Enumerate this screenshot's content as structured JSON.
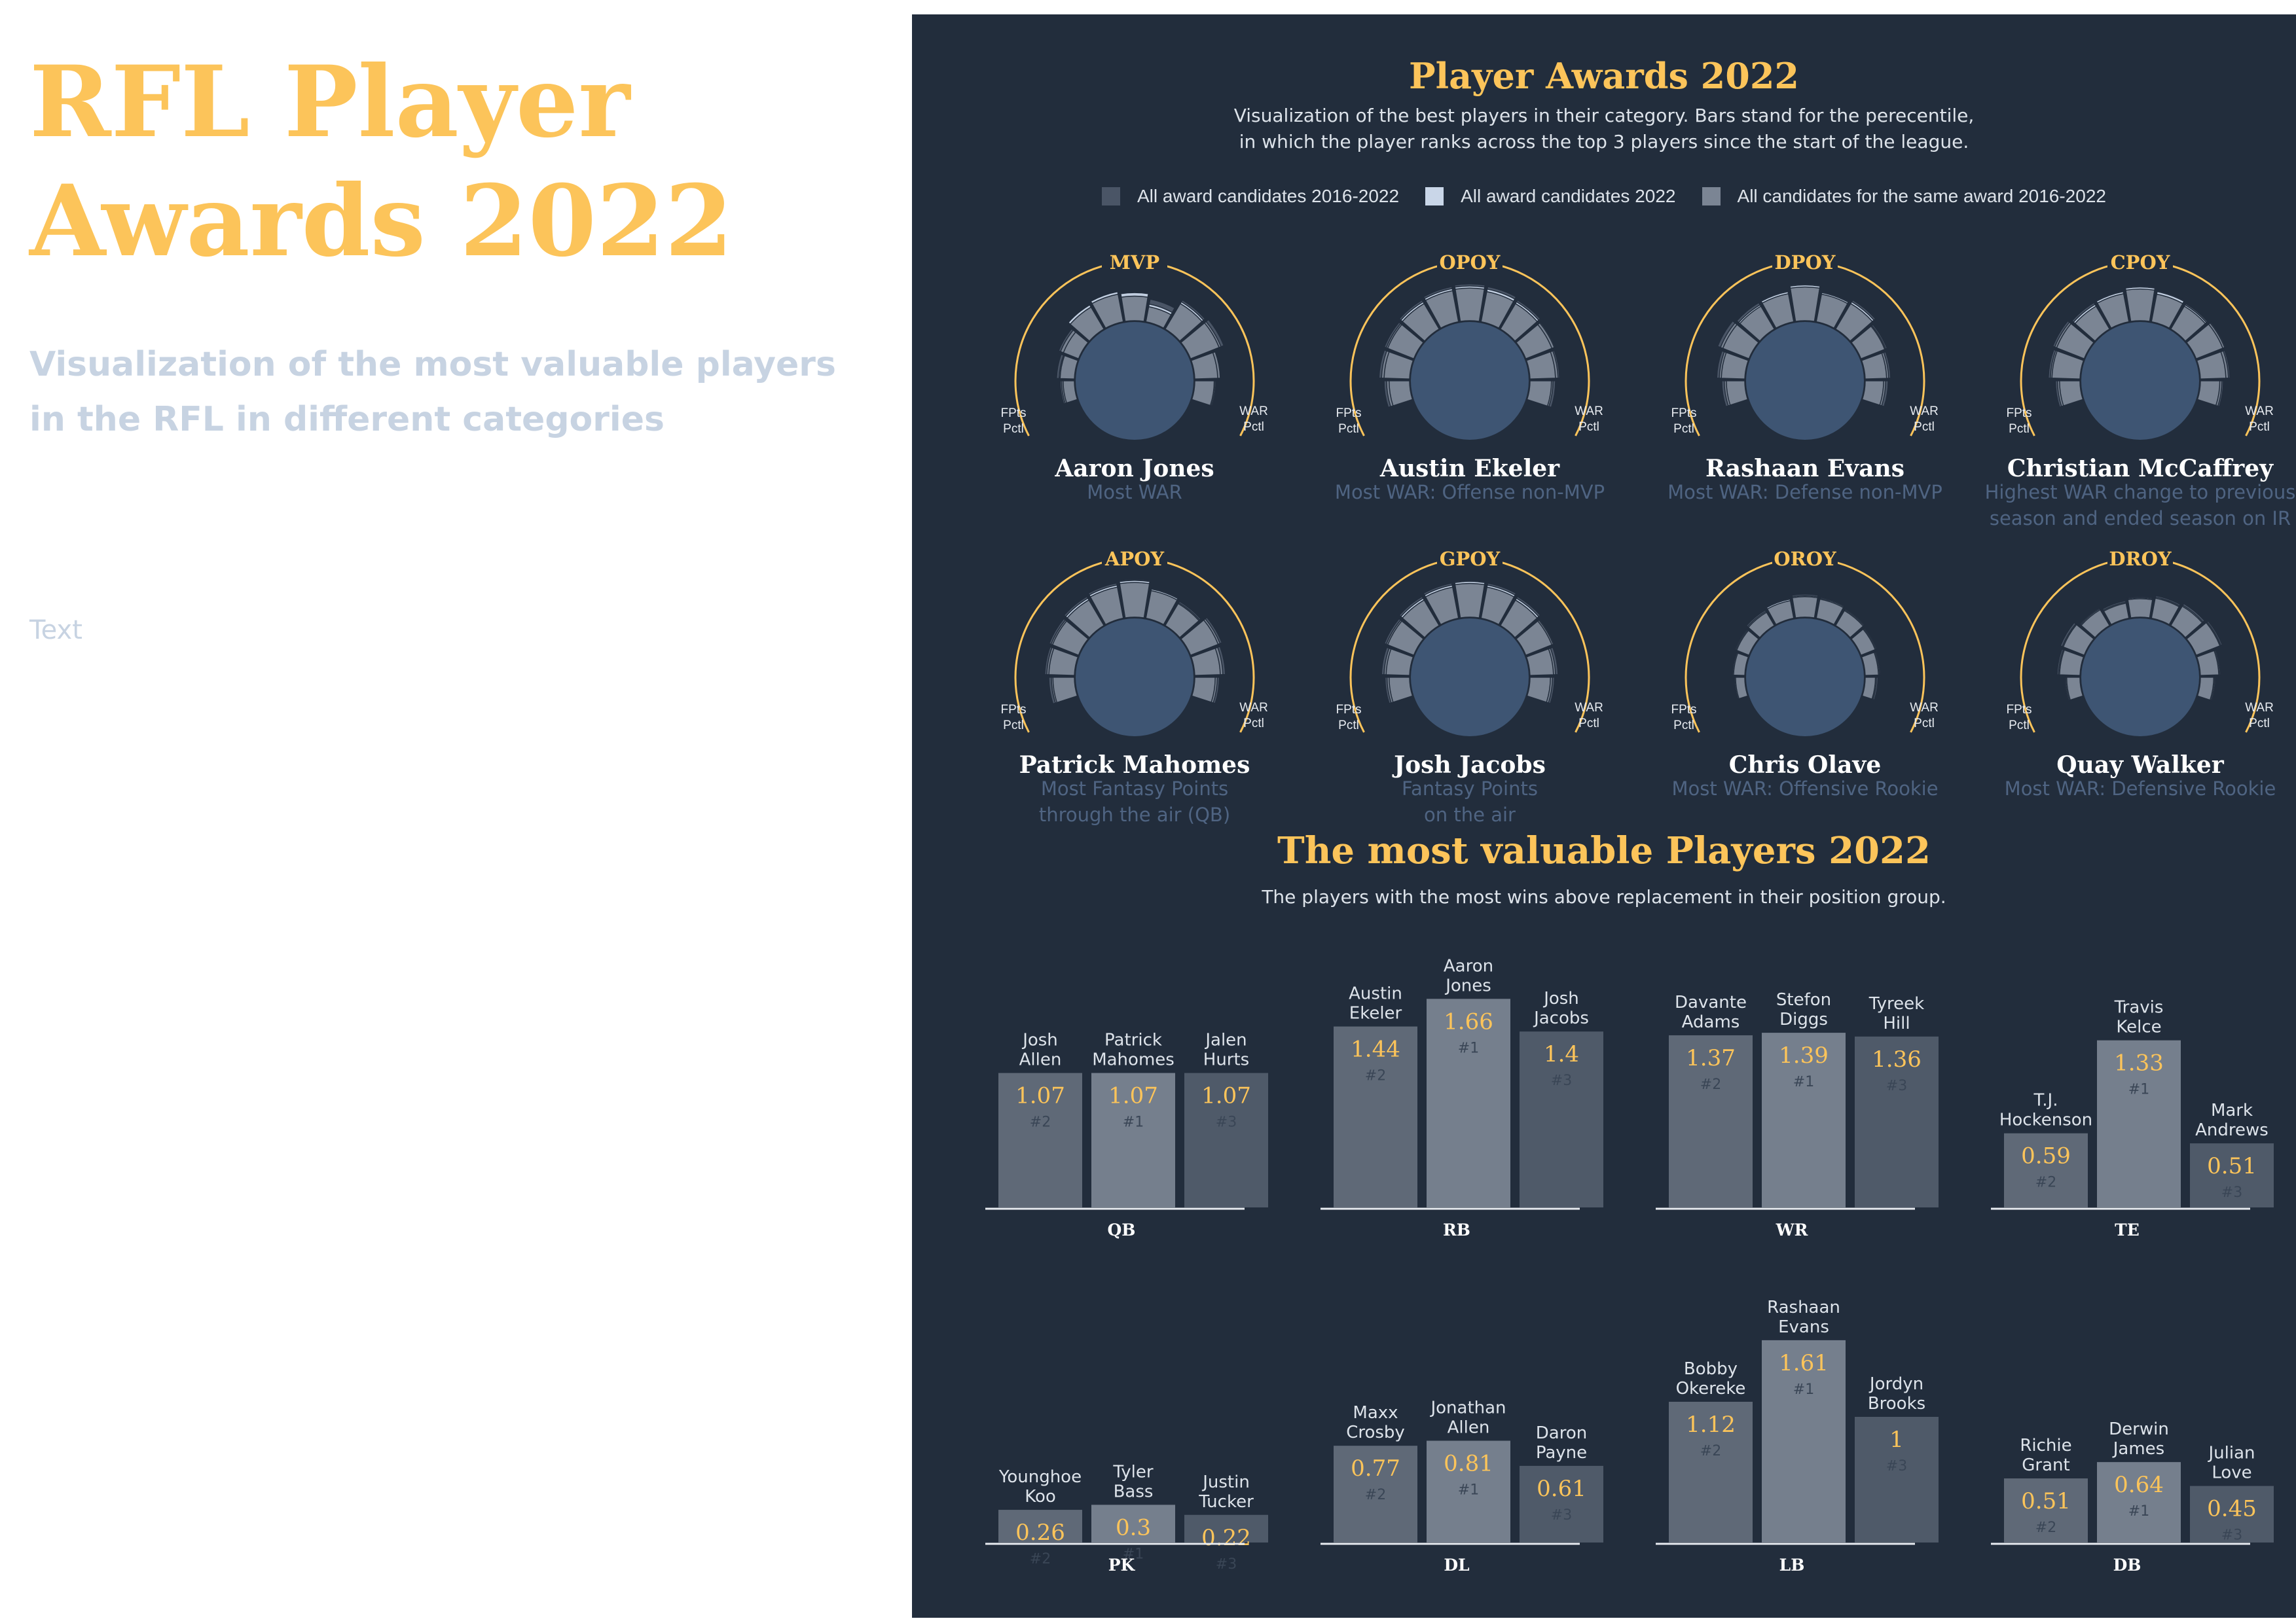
{
  "page": {
    "title": "RFL Player Awards 2022",
    "subtitle": "Visualization of the most valuable players in the RFL in different categories",
    "text": "Text"
  },
  "colors": {
    "panel_bg": "#222d3c",
    "accent": "#fcc45a",
    "circle_fill": "#3e5573",
    "legend_all": "#4a5566",
    "legend_2022": "#c9d6e8",
    "legend_same": "#7b8594",
    "bar_rank1": "#757f8d",
    "bar_rank2": "#5f6977",
    "bar_rank3": "#4f5a69",
    "rank_text": "#3a4656"
  },
  "awards_section": {
    "title": "Player Awards 2022",
    "description": [
      "Visualization of the best players in their category. Bars stand for the perecentile,",
      "in which the player ranks across the top 3 players since the start of the league."
    ],
    "legend": [
      "All award candidates 2016-2022",
      "All award candidates 2022",
      "All candidates for the same award 2016-2022"
    ],
    "left_label": [
      "FPts",
      "Pctl"
    ],
    "right_label": [
      "WAR",
      "Pctl"
    ]
  },
  "awards": [
    {
      "code": "MVP",
      "player": "Aaron Jones",
      "description": "Most WAR",
      "ring_all": [
        0.28,
        0.35,
        0.42,
        0.55,
        0.6,
        0.52,
        0.45,
        0.66,
        0.7,
        0.5,
        0.42
      ],
      "ring_2022": [
        0.25,
        0.3,
        0.38,
        0.55,
        0.6,
        0.55,
        0.35,
        0.62,
        0.64,
        0.5,
        0.4
      ],
      "ring_same": [
        0.22,
        0.28,
        0.32,
        0.5,
        0.55,
        0.48,
        0.3,
        0.58,
        0.6,
        0.45,
        0.38
      ]
    },
    {
      "code": "OPOY",
      "player": "Austin Ekeler",
      "description": "Most WAR: Offense non-MVP",
      "ring_all": [
        0.5,
        0.6,
        0.62,
        0.66,
        0.7,
        0.72,
        0.7,
        0.66,
        0.62,
        0.58,
        0.5
      ],
      "ring_2022": [
        0.45,
        0.55,
        0.58,
        0.62,
        0.66,
        0.68,
        0.65,
        0.62,
        0.6,
        0.55,
        0.45
      ],
      "ring_same": [
        0.4,
        0.5,
        0.55,
        0.58,
        0.62,
        0.64,
        0.6,
        0.58,
        0.55,
        0.5,
        0.42
      ]
    },
    {
      "code": "DPOY",
      "player": "Rashaan Evans",
      "description": "Most WAR: Defense non-MVP",
      "ring_all": [
        0.45,
        0.55,
        0.66,
        0.6,
        0.62,
        0.72,
        0.6,
        0.66,
        0.55,
        0.5,
        0.45
      ],
      "ring_2022": [
        0.4,
        0.5,
        0.6,
        0.55,
        0.6,
        0.7,
        0.58,
        0.62,
        0.52,
        0.46,
        0.4
      ],
      "ring_same": [
        0.36,
        0.46,
        0.55,
        0.52,
        0.56,
        0.66,
        0.55,
        0.58,
        0.5,
        0.42,
        0.36
      ]
    },
    {
      "code": "CPOY",
      "player": "Christian McCaffrey",
      "description": "Highest WAR change to previous\nseason and ended season on IR",
      "ring_all": [
        0.48,
        0.62,
        0.66,
        0.6,
        0.62,
        0.68,
        0.62,
        0.58,
        0.62,
        0.58,
        0.45
      ],
      "ring_2022": [
        0.44,
        0.58,
        0.62,
        0.56,
        0.6,
        0.66,
        0.6,
        0.55,
        0.6,
        0.55,
        0.42
      ],
      "ring_same": [
        0.4,
        0.55,
        0.58,
        0.52,
        0.56,
        0.62,
        0.55,
        0.52,
        0.56,
        0.5,
        0.38
      ]
    },
    {
      "code": "APOY",
      "player": "Patrick Mahomes",
      "description": "Most Fantasy Points\nthrough the air (QB)",
      "ring_all": [
        0.5,
        0.58,
        0.62,
        0.66,
        0.7,
        0.74,
        0.6,
        0.55,
        0.66,
        0.6,
        0.48
      ],
      "ring_2022": [
        0.45,
        0.54,
        0.58,
        0.62,
        0.66,
        0.72,
        0.58,
        0.52,
        0.62,
        0.55,
        0.44
      ],
      "ring_same": [
        0.42,
        0.5,
        0.55,
        0.58,
        0.62,
        0.68,
        0.55,
        0.5,
        0.58,
        0.5,
        0.4
      ]
    },
    {
      "code": "GPOY",
      "player": "Josh Jacobs",
      "description": "Fantasy Points\non the air",
      "ring_all": [
        0.48,
        0.55,
        0.62,
        0.66,
        0.7,
        0.72,
        0.7,
        0.66,
        0.6,
        0.55,
        0.48
      ],
      "ring_2022": [
        0.44,
        0.5,
        0.58,
        0.62,
        0.66,
        0.7,
        0.66,
        0.62,
        0.58,
        0.5,
        0.44
      ],
      "ring_same": [
        0.4,
        0.46,
        0.55,
        0.58,
        0.62,
        0.66,
        0.62,
        0.58,
        0.55,
        0.46,
        0.4
      ]
    },
    {
      "code": "OROY",
      "player": "Chris Olave",
      "description": "Most WAR: Offensive Rookie",
      "ring_all": [
        0.2,
        0.25,
        0.3,
        0.35,
        0.4,
        0.45,
        0.42,
        0.38,
        0.34,
        0.3,
        0.25
      ],
      "ring_2022": [
        0.2,
        0.24,
        0.28,
        0.32,
        0.38,
        0.42,
        0.4,
        0.36,
        0.32,
        0.28,
        0.22
      ],
      "ring_same": [
        0.18,
        0.22,
        0.26,
        0.3,
        0.35,
        0.4,
        0.38,
        0.34,
        0.3,
        0.26,
        0.2
      ]
    },
    {
      "code": "DROY",
      "player": "Quay Walker",
      "description": "Most WAR: Defensive Rookie",
      "ring_all": [
        0.3,
        0.45,
        0.5,
        0.4,
        0.35,
        0.4,
        0.45,
        0.5,
        0.55,
        0.4,
        0.3
      ],
      "ring_2022": [
        0.28,
        0.42,
        0.46,
        0.38,
        0.32,
        0.38,
        0.42,
        0.46,
        0.52,
        0.38,
        0.28
      ],
      "ring_same": [
        0.26,
        0.4,
        0.44,
        0.36,
        0.3,
        0.36,
        0.4,
        0.44,
        0.5,
        0.36,
        0.26
      ]
    }
  ],
  "mvp_section": {
    "title": "The most valuable Players 2022",
    "description": "The players with the most wins above replacement in their position group."
  },
  "chart_data": {
    "type": "bar",
    "title": "The most valuable Players 2022",
    "ylim": [
      0,
      1.7
    ],
    "groups": [
      {
        "position": "QB",
        "players": [
          {
            "name": [
              "Josh",
              "Allen"
            ],
            "value": 1.07,
            "rank": "#2"
          },
          {
            "name": [
              "Patrick",
              "Mahomes"
            ],
            "value": 1.07,
            "rank": "#1"
          },
          {
            "name": [
              "Jalen",
              "Hurts"
            ],
            "value": 1.07,
            "rank": "#3"
          }
        ]
      },
      {
        "position": "RB",
        "players": [
          {
            "name": [
              "Austin",
              "Ekeler"
            ],
            "value": 1.44,
            "rank": "#2"
          },
          {
            "name": [
              "Aaron",
              "Jones"
            ],
            "value": 1.66,
            "rank": "#1"
          },
          {
            "name": [
              "Josh",
              "Jacobs"
            ],
            "value": 1.4,
            "rank": "#3"
          }
        ]
      },
      {
        "position": "WR",
        "players": [
          {
            "name": [
              "Davante",
              "Adams"
            ],
            "value": 1.37,
            "rank": "#2"
          },
          {
            "name": [
              "Stefon",
              "Diggs"
            ],
            "value": 1.39,
            "rank": "#1"
          },
          {
            "name": [
              "Tyreek",
              "Hill"
            ],
            "value": 1.36,
            "rank": "#3"
          }
        ]
      },
      {
        "position": "TE",
        "players": [
          {
            "name": [
              "T.J.",
              "Hockenson"
            ],
            "value": 0.59,
            "rank": "#2"
          },
          {
            "name": [
              "Travis",
              "Kelce"
            ],
            "value": 1.33,
            "rank": "#1"
          },
          {
            "name": [
              "Mark",
              "Andrews"
            ],
            "value": 0.51,
            "rank": "#3"
          }
        ]
      },
      {
        "position": "PK",
        "players": [
          {
            "name": [
              "Younghoe",
              "Koo"
            ],
            "value": 0.26,
            "rank": "#2"
          },
          {
            "name": [
              "Tyler",
              "Bass"
            ],
            "value": 0.3,
            "rank": "#1"
          },
          {
            "name": [
              "Justin",
              "Tucker"
            ],
            "value": 0.22,
            "rank": "#3"
          }
        ]
      },
      {
        "position": "DL",
        "players": [
          {
            "name": [
              "Maxx",
              "Crosby"
            ],
            "value": 0.77,
            "rank": "#2"
          },
          {
            "name": [
              "Jonathan",
              "Allen"
            ],
            "value": 0.81,
            "rank": "#1"
          },
          {
            "name": [
              "Daron",
              "Payne"
            ],
            "value": 0.61,
            "rank": "#3"
          }
        ]
      },
      {
        "position": "LB",
        "players": [
          {
            "name": [
              "Bobby",
              "Okereke"
            ],
            "value": 1.12,
            "rank": "#2"
          },
          {
            "name": [
              "Rashaan",
              "Evans"
            ],
            "value": 1.61,
            "rank": "#1"
          },
          {
            "name": [
              "Jordyn",
              "Brooks"
            ],
            "value": 1,
            "rank": "#3"
          }
        ]
      },
      {
        "position": "DB",
        "players": [
          {
            "name": [
              "Richie",
              "Grant"
            ],
            "value": 0.51,
            "rank": "#2"
          },
          {
            "name": [
              "Derwin",
              "James"
            ],
            "value": 0.64,
            "rank": "#1"
          },
          {
            "name": [
              "Julian",
              "Love"
            ],
            "value": 0.45,
            "rank": "#3"
          }
        ]
      }
    ]
  }
}
